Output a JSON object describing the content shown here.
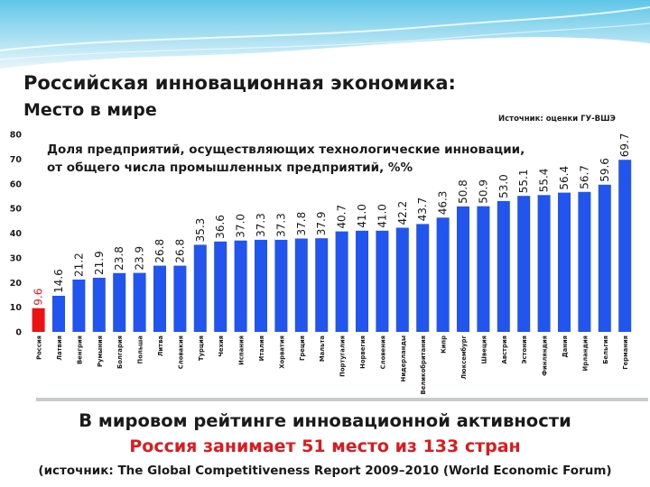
{
  "slide": {
    "title": "Российская инновационная экономика:",
    "subtitle": "Место в мире",
    "source_note": "Источник: оценки ГУ-ВШЭ"
  },
  "footer": {
    "line1": "В мировом рейтинге инновационной активности",
    "line2": "Россия занимает 51 место из 133 стран",
    "line3": "(источник: The Global Competitiveness Report 2009–2010 (World Economic Forum)"
  },
  "colors": {
    "bar": "#2255ee",
    "highlight_bar": "#ee1111",
    "highlight_label": "#e0191e",
    "header_top": "#5fc6e8",
    "header_bottom": "#e8f6fb"
  },
  "chart_data": {
    "type": "bar",
    "title_lines": [
      "Доля предприятий, осуществляющих технологические инновации,",
      "от общего числа промышленных предприятий, %%"
    ],
    "categories": [
      "Россия",
      "Латвия",
      "Венгрия",
      "Румыния",
      "Болгария",
      "Польша",
      "Литва",
      "Словакия",
      "Турция",
      "Чехия",
      "Испания",
      "Италия",
      "Хорватия",
      "Греция",
      "Мальта",
      "Португалия",
      "Норвегия",
      "Словения",
      "Нидерланды",
      "Великобритания",
      "Кипр",
      "Люксембург",
      "Швеция",
      "Австрия",
      "Эстония",
      "Финляндия",
      "Дания",
      "Ирландия",
      "Бельгия",
      "Германия"
    ],
    "values": [
      9.6,
      14.6,
      21.2,
      21.9,
      23.8,
      23.9,
      26.8,
      26.8,
      35.3,
      36.6,
      37.0,
      37.3,
      37.3,
      37.8,
      37.9,
      40.7,
      41.0,
      41.0,
      42.2,
      43.7,
      46.3,
      50.8,
      50.9,
      53.0,
      55.1,
      55.4,
      56.4,
      56.7,
      59.6,
      69.7
    ],
    "value_labels": [
      "9.6",
      "14.6",
      "21.2",
      "21.9",
      "23.8",
      "23.9",
      "26.8",
      "26.8",
      "35.3",
      "36.6",
      "37.0",
      "37.3",
      "37.3",
      "37.8",
      "37.9",
      "40.7",
      "41.0",
      "41.0",
      "42.2",
      "43.7",
      "46.3",
      "50.8",
      "50.9",
      "53.0",
      "55.1",
      "55.4",
      "56.4",
      "56.7",
      "59.6",
      "69.7"
    ],
    "highlight_index": 0,
    "ylim": [
      0,
      80
    ],
    "yticks": [
      "0",
      "10",
      "20",
      "30",
      "40",
      "50",
      "60",
      "70",
      "80"
    ],
    "grid": false,
    "legend": false
  }
}
